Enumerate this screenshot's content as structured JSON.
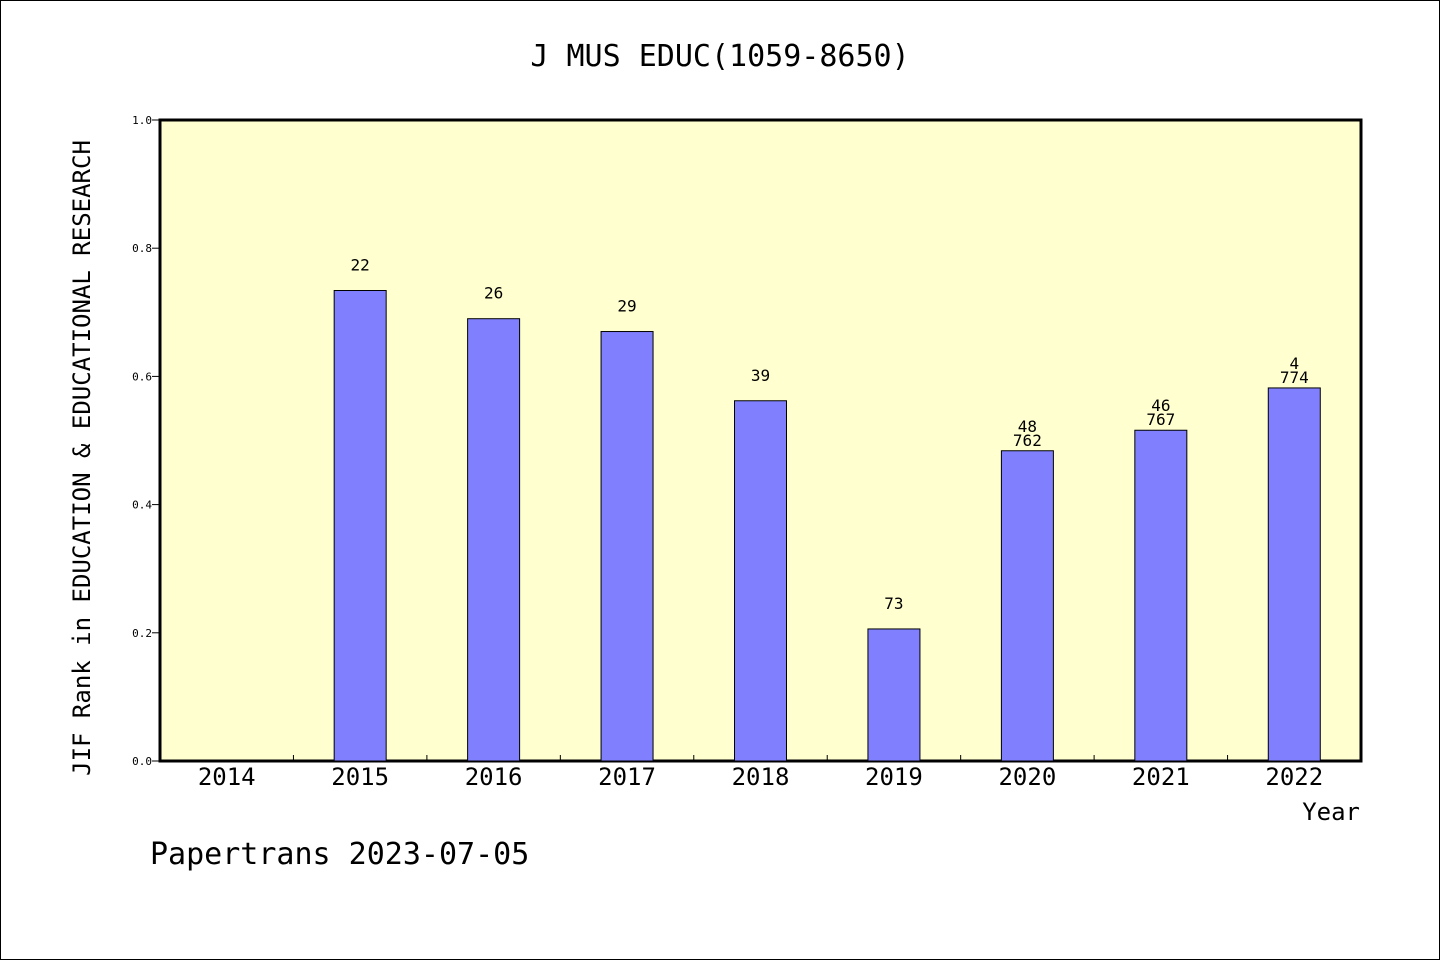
{
  "chart_data": {
    "type": "bar",
    "title": "J MUS EDUC(1059-8650)",
    "xlabel": "Year",
    "ylabel": "JIF Rank in EDUCATION & EDUCATIONAL RESEARCH",
    "categories": [
      "2014",
      "2015",
      "2016",
      "2017",
      "2018",
      "2019",
      "2020",
      "2021",
      "2022"
    ],
    "values": [
      null,
      0.734,
      0.69,
      0.67,
      0.562,
      0.206,
      0.484,
      0.516,
      0.582
    ],
    "bar_labels": [
      [],
      [
        "22"
      ],
      [
        "26"
      ],
      [
        "29"
      ],
      [
        "39"
      ],
      [
        "73"
      ],
      [
        "48",
        "762"
      ],
      [
        "46",
        "767"
      ],
      [
        "4",
        "774"
      ]
    ],
    "ylim": [
      0.0,
      1.0
    ],
    "yticks": [
      "0.0",
      "0.2",
      "0.4",
      "0.6",
      "0.8",
      "1.0"
    ],
    "grid": false,
    "legend": "none",
    "colors": {
      "plot_background": "#ffffd0",
      "bar_fill": "#8080ff",
      "bar_stroke": "#000000"
    }
  },
  "footer": {
    "text": "Papertrans 2023-07-05"
  }
}
